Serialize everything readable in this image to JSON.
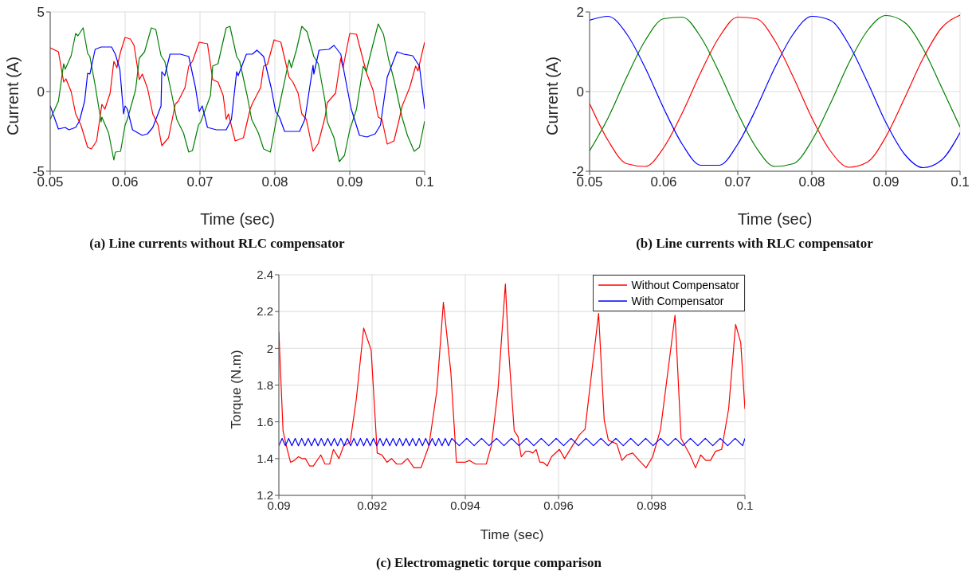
{
  "chart_data": [
    {
      "type": "line",
      "title": "(a) Line currents without RLC compensator",
      "xlabel": "Time (sec)",
      "ylabel": "Current (A)",
      "xlim": [
        0.05,
        0.1
      ],
      "xticks": [
        0.05,
        0.06,
        0.07,
        0.08,
        0.09,
        0.1
      ],
      "ylim": [
        -5,
        5
      ],
      "yticks": [
        -5,
        0,
        5
      ],
      "grid": true,
      "series": [
        {
          "color": "#ff0000",
          "x": [
            0.05,
            0.0511,
            0.0518,
            0.0521,
            0.0528,
            0.0534,
            0.0541,
            0.055,
            0.0555,
            0.0562,
            0.0569,
            0.0573,
            0.058,
            0.0585,
            0.0589,
            0.0594,
            0.06,
            0.0607,
            0.0612,
            0.0619,
            0.0623,
            0.063,
            0.0637,
            0.0644,
            0.0649,
            0.0658,
            0.0667,
            0.0671,
            0.068,
            0.0685,
            0.069,
            0.0699,
            0.071,
            0.0717,
            0.0724,
            0.0731,
            0.0735,
            0.0738,
            0.0747,
            0.0758,
            0.0767,
            0.077,
            0.0781,
            0.0785,
            0.079,
            0.0799,
            0.0808,
            0.0819,
            0.0824,
            0.0831,
            0.0836,
            0.0842,
            0.0851,
            0.0858,
            0.0867,
            0.087,
            0.0881,
            0.0888,
            0.0891,
            0.09,
            0.0909,
            0.092,
            0.0923,
            0.0931,
            0.0938,
            0.0943,
            0.095,
            0.0959,
            0.0966,
            0.097,
            0.098,
            0.0988,
            0.0991,
            0.1
          ],
          "values": [
            2.75,
            2.5,
            0.6,
            0.8,
            0,
            -1.4,
            -2.1,
            -3.5,
            -3.6,
            -3.1,
            -0.8,
            -1.1,
            -0.1,
            1.9,
            1.5,
            2.5,
            3.4,
            3.3,
            2.9,
            0.75,
            1.1,
            0.2,
            -1.4,
            -2.1,
            -3.4,
            -2.9,
            -0.8,
            -0.6,
            0.25,
            1.6,
            1.9,
            3.1,
            3.0,
            0.75,
            0.6,
            -0.25,
            -1.75,
            -1.4,
            -3.1,
            -2.9,
            -1.1,
            -0.75,
            0.25,
            1.6,
            1.7,
            3.25,
            3.1,
            0.9,
            0.6,
            -0.1,
            -1.4,
            -1.75,
            -3.75,
            -3.25,
            -1.6,
            -0.7,
            -0.1,
            2.1,
            1.5,
            3.65,
            3.6,
            1.6,
            1.1,
            0.1,
            -1.6,
            -1.75,
            -3.3,
            -3.1,
            -1.75,
            -0.9,
            0.25,
            1.6,
            1.3,
            3.1
          ]
        },
        {
          "color": "#008000",
          "x": [
            0.05,
            0.0511,
            0.0518,
            0.052,
            0.0528,
            0.0534,
            0.0537,
            0.0544,
            0.055,
            0.0553,
            0.056,
            0.0568,
            0.0569,
            0.0578,
            0.0585,
            0.0587,
            0.0594,
            0.06,
            0.0603,
            0.0614,
            0.0619,
            0.0626,
            0.0635,
            0.0641,
            0.0648,
            0.0653,
            0.0662,
            0.0669,
            0.0678,
            0.0685,
            0.069,
            0.0698,
            0.0701,
            0.0714,
            0.0717,
            0.0724,
            0.0735,
            0.074,
            0.0749,
            0.0753,
            0.0763,
            0.0769,
            0.0778,
            0.0785,
            0.0794,
            0.0801,
            0.0806,
            0.0819,
            0.0822,
            0.0829,
            0.0836,
            0.0843,
            0.0852,
            0.0858,
            0.0867,
            0.087,
            0.0879,
            0.0886,
            0.0893,
            0.09,
            0.0909,
            0.0918,
            0.0922,
            0.0929,
            0.0938,
            0.0945,
            0.0952,
            0.0959,
            0.097,
            0.0977,
            0.0986,
            0.0993,
            0.1
          ],
          "values": [
            -1.75,
            -0.6,
            1.75,
            1.4,
            2.25,
            3.65,
            3.5,
            4.0,
            2.4,
            2.2,
            0.4,
            -1.9,
            -1.6,
            -2.6,
            -4.3,
            -3.8,
            -3.75,
            -2.1,
            -1.75,
            0.1,
            2.1,
            2.5,
            4.0,
            3.9,
            2.25,
            1.9,
            -0.1,
            -1.75,
            -2.6,
            -3.8,
            -3.7,
            -2.1,
            -1.9,
            -0.25,
            1.6,
            1.75,
            4.0,
            4.1,
            2.2,
            1.9,
            -0.25,
            -1.75,
            -2.6,
            -3.6,
            -3.8,
            -2.0,
            -0.9,
            2.0,
            1.5,
            2.65,
            4.1,
            3.75,
            2.2,
            1.75,
            -0.6,
            -1.9,
            -2.9,
            -4.4,
            -4.0,
            -2.4,
            -1.1,
            1.6,
            1.25,
            2.6,
            4.25,
            3.6,
            2.0,
            0.75,
            -1.65,
            -2.75,
            -3.75,
            -3.5,
            -1.85
          ]
        },
        {
          "color": "#0000ff",
          "x": [
            0.05,
            0.0511,
            0.052,
            0.0525,
            0.0534,
            0.0539,
            0.0546,
            0.055,
            0.0553,
            0.056,
            0.0568,
            0.0582,
            0.0587,
            0.0593,
            0.0598,
            0.06,
            0.0603,
            0.061,
            0.0623,
            0.063,
            0.0637,
            0.0648,
            0.0649,
            0.0653,
            0.066,
            0.0674,
            0.0685,
            0.0694,
            0.0699,
            0.0703,
            0.071,
            0.0722,
            0.0735,
            0.0742,
            0.0749,
            0.0751,
            0.0762,
            0.077,
            0.0776,
            0.0785,
            0.0795,
            0.0801,
            0.0806,
            0.0813,
            0.0833,
            0.084,
            0.0851,
            0.0852,
            0.0859,
            0.0872,
            0.0879,
            0.0888,
            0.0897,
            0.0902,
            0.0913,
            0.0923,
            0.0934,
            0.0941,
            0.095,
            0.0952,
            0.0963,
            0.0972,
            0.0984,
            0.0993,
            0.1
          ],
          "values": [
            -0.9,
            -2.35,
            -2.25,
            -2.4,
            -2.25,
            -1.85,
            -0.6,
            1.15,
            1.1,
            2.65,
            2.8,
            2.8,
            2.35,
            1.4,
            -1.4,
            -0.9,
            -1.1,
            -2.4,
            -2.75,
            -2.65,
            -2.25,
            -0.9,
            1.25,
            1.0,
            2.35,
            2.35,
            2.2,
            0.25,
            -1.25,
            -0.9,
            -2.25,
            -2.4,
            -2.4,
            -1.75,
            1.25,
            1.0,
            2.35,
            2.35,
            2.6,
            2.2,
            0.25,
            -1.25,
            -1.6,
            -2.5,
            -2.5,
            -1.75,
            1.65,
            1.1,
            2.6,
            2.65,
            2.9,
            2.35,
            0.1,
            -1.1,
            -2.75,
            -2.85,
            -2.65,
            -2.1,
            0.9,
            1.15,
            2.5,
            2.35,
            2.25,
            1.6,
            -1.1
          ]
        }
      ]
    },
    {
      "type": "line",
      "title": "(b) Line currents with RLC compensator",
      "xlabel": "Time (sec)",
      "ylabel": "Current (A)",
      "xlim": [
        0.05,
        0.1
      ],
      "xticks": [
        0.05,
        0.06,
        0.07,
        0.08,
        0.09,
        0.1
      ],
      "ylim": [
        -2,
        2
      ],
      "yticks": [
        -2,
        0,
        2
      ],
      "grid": true,
      "x": [
        0.05,
        0.0525,
        0.055,
        0.0575,
        0.06,
        0.0625,
        0.065,
        0.0675,
        0.07,
        0.0725,
        0.075,
        0.0775,
        0.08,
        0.0825,
        0.085,
        0.0875,
        0.09,
        0.0925,
        0.095,
        0.0975,
        0.1
      ],
      "series": [
        {
          "color": "#ff0000",
          "values": [
            -0.3,
            -1.23,
            -1.81,
            -1.88,
            -1.41,
            -0.54,
            0.48,
            1.37,
            1.87,
            1.83,
            1.28,
            0.36,
            -0.66,
            -1.49,
            -1.9,
            -1.77,
            -1.13,
            -0.17,
            0.83,
            1.6,
            1.92
          ]
        },
        {
          "color": "#008000",
          "values": [
            -1.49,
            -0.66,
            0.36,
            1.28,
            1.83,
            1.87,
            1.37,
            0.48,
            -0.54,
            -1.41,
            -1.88,
            -1.81,
            -1.23,
            -0.3,
            0.72,
            1.53,
            1.91,
            1.74,
            1.08,
            0.11,
            -0.89
          ]
        },
        {
          "color": "#0000ff",
          "values": [
            1.79,
            1.89,
            1.45,
            0.6,
            -0.42,
            -1.32,
            -1.85,
            -1.85,
            -1.32,
            -0.42,
            0.6,
            1.45,
            1.89,
            1.79,
            1.18,
            0.24,
            -0.78,
            -1.57,
            -1.91,
            -1.72,
            -1.03
          ]
        }
      ]
    },
    {
      "type": "line",
      "title": "(c) Electromagnetic torque comparison",
      "xlabel": "Time (sec)",
      "ylabel": "Torque (N.m)",
      "xlim": [
        0.09,
        0.1
      ],
      "xticks": [
        0.09,
        0.092,
        0.094,
        0.096,
        0.098,
        0.1
      ],
      "ylim": [
        1.2,
        2.4
      ],
      "yticks": [
        1.2,
        1.4,
        1.6,
        1.8,
        2,
        2.2,
        2.4
      ],
      "grid": true,
      "legend": "top right",
      "series": [
        {
          "name": "Without Compensator",
          "color": "#ff0000",
          "x": [
            0.09,
            0.09009,
            0.09016,
            0.09025,
            0.09033,
            0.09042,
            0.0905,
            0.09057,
            0.09066,
            0.09074,
            0.0909,
            0.09099,
            0.09109,
            0.09117,
            0.09129,
            0.09139,
            0.09153,
            0.09166,
            0.09182,
            0.09198,
            0.09211,
            0.09221,
            0.09232,
            0.09242,
            0.09253,
            0.09263,
            0.09276,
            0.0929,
            0.09305,
            0.09322,
            0.09339,
            0.09353,
            0.09369,
            0.09381,
            0.09399,
            0.09409,
            0.09422,
            0.09445,
            0.09456,
            0.0947,
            0.09486,
            0.09493,
            0.09505,
            0.09513,
            0.0952,
            0.0953,
            0.09537,
            0.09545,
            0.09552,
            0.0956,
            0.09567,
            0.09576,
            0.09585,
            0.09602,
            0.09613,
            0.0963,
            0.09645,
            0.09657,
            0.09686,
            0.09698,
            0.09707,
            0.09725,
            0.09736,
            0.09747,
            0.09759,
            0.09773,
            0.09788,
            0.09802,
            0.09819,
            0.0985,
            0.09863,
            0.09882,
            0.09894,
            0.09905,
            0.09916,
            0.09926,
            0.09937,
            0.0995,
            0.09965,
            0.0998,
            0.09991,
            0.1
          ],
          "values": [
            2.09,
            1.55,
            1.47,
            1.38,
            1.39,
            1.41,
            1.4,
            1.4,
            1.36,
            1.36,
            1.42,
            1.37,
            1.37,
            1.45,
            1.4,
            1.47,
            1.49,
            1.72,
            2.11,
            1.99,
            1.43,
            1.42,
            1.38,
            1.4,
            1.37,
            1.37,
            1.4,
            1.35,
            1.35,
            1.47,
            1.77,
            2.25,
            1.87,
            1.38,
            1.38,
            1.39,
            1.37,
            1.37,
            1.47,
            1.77,
            2.35,
            1.99,
            1.55,
            1.52,
            1.41,
            1.44,
            1.44,
            1.43,
            1.45,
            1.38,
            1.38,
            1.36,
            1.41,
            1.45,
            1.4,
            1.47,
            1.53,
            1.56,
            2.19,
            1.61,
            1.5,
            1.48,
            1.39,
            1.42,
            1.43,
            1.39,
            1.35,
            1.41,
            1.56,
            2.18,
            1.51,
            1.42,
            1.35,
            1.42,
            1.39,
            1.39,
            1.44,
            1.45,
            1.67,
            2.13,
            2.03,
            1.67
          ]
        },
        {
          "name": "With Compensator",
          "color": "#0000ff",
          "x": [
            0.09,
            0.09007,
            0.09014,
            0.09021,
            0.09028,
            0.09035,
            0.09042,
            0.09049,
            0.09056,
            0.09063,
            0.0907,
            0.09077,
            0.09084,
            0.09091,
            0.09098,
            0.09105,
            0.09112,
            0.09119,
            0.09126,
            0.09133,
            0.0914,
            0.09147,
            0.09154,
            0.09161,
            0.09168,
            0.09175,
            0.09182,
            0.09189,
            0.09196,
            0.09203,
            0.0921,
            0.09217,
            0.09224,
            0.09231,
            0.09238,
            0.09245,
            0.09252,
            0.09259,
            0.09266,
            0.09273,
            0.0928,
            0.09287,
            0.09294,
            0.09301,
            0.09308,
            0.09315,
            0.09322,
            0.09329,
            0.09336,
            0.09343,
            0.0935,
            0.09357,
            0.09364,
            0.09371,
            0.09387,
            0.09403,
            0.09419,
            0.09435,
            0.09451,
            0.09467,
            0.09483,
            0.09499,
            0.09515,
            0.09531,
            0.09547,
            0.09563,
            0.09579,
            0.09595,
            0.09611,
            0.09627,
            0.09643,
            0.09659,
            0.09675,
            0.09691,
            0.09707,
            0.09723,
            0.09739,
            0.09755,
            0.09771,
            0.09787,
            0.09803,
            0.09819,
            0.09835,
            0.09851,
            0.09867,
            0.09883,
            0.09899,
            0.09915,
            0.09931,
            0.09947,
            0.09963,
            0.09979,
            0.09995,
            0.1
          ],
          "values": [
            1.47,
            1.51,
            1.47,
            1.51,
            1.47,
            1.51,
            1.47,
            1.51,
            1.47,
            1.51,
            1.47,
            1.51,
            1.47,
            1.51,
            1.47,
            1.51,
            1.47,
            1.51,
            1.47,
            1.51,
            1.47,
            1.51,
            1.47,
            1.51,
            1.47,
            1.51,
            1.47,
            1.51,
            1.47,
            1.51,
            1.47,
            1.51,
            1.47,
            1.51,
            1.47,
            1.51,
            1.47,
            1.51,
            1.47,
            1.51,
            1.47,
            1.51,
            1.47,
            1.51,
            1.47,
            1.51,
            1.47,
            1.51,
            1.47,
            1.51,
            1.47,
            1.51,
            1.47,
            1.51,
            1.47,
            1.51,
            1.47,
            1.51,
            1.47,
            1.51,
            1.47,
            1.51,
            1.47,
            1.51,
            1.47,
            1.51,
            1.47,
            1.51,
            1.47,
            1.51,
            1.47,
            1.51,
            1.47,
            1.51,
            1.47,
            1.51,
            1.47,
            1.51,
            1.47,
            1.51,
            1.47,
            1.51,
            1.47,
            1.51,
            1.47,
            1.51,
            1.47,
            1.51,
            1.47,
            1.51,
            1.47,
            1.51,
            1.47,
            1.51
          ]
        }
      ]
    }
  ]
}
